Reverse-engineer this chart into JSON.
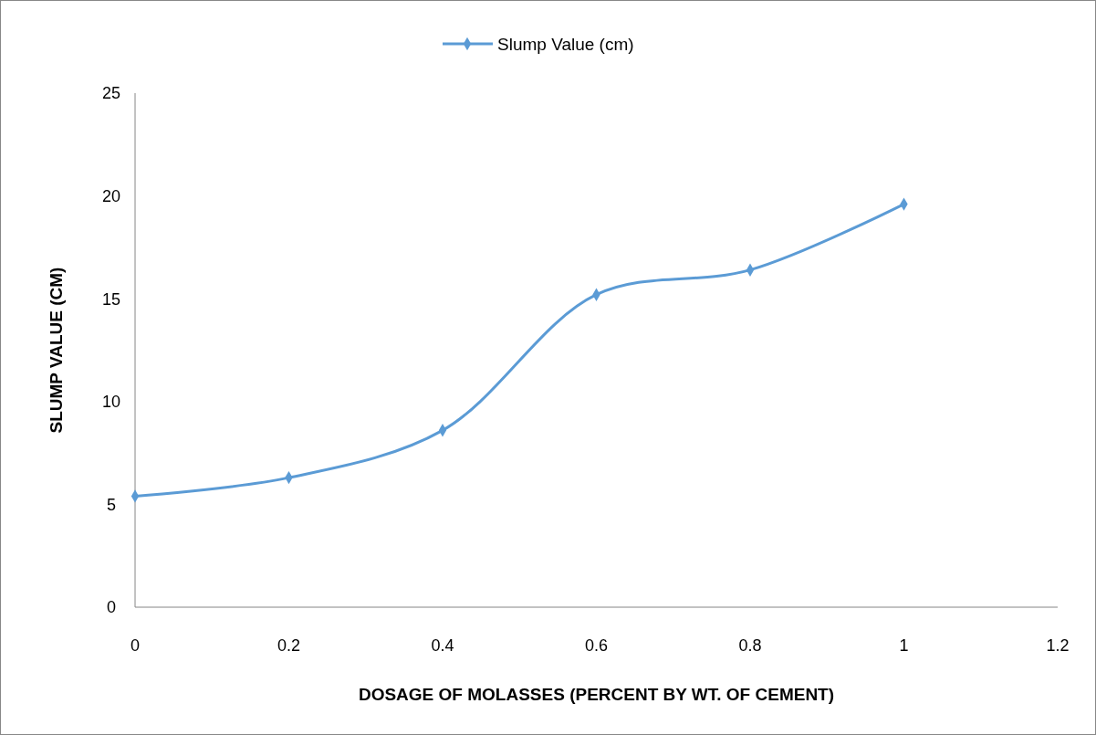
{
  "chart_data": {
    "type": "line",
    "xlabel": "DOSAGE OF MOLASSES (PERCENT BY WT. OF CEMENT)",
    "ylabel": "SLUMP VALUE (CM)",
    "x": [
      0,
      0.2,
      0.4,
      0.6,
      0.8,
      1
    ],
    "series": [
      {
        "name": "Slump Value (cm)",
        "color": "#5b9bd5",
        "values": [
          5.4,
          6.3,
          8.6,
          15.2,
          16.4,
          19.6
        ]
      }
    ],
    "xlim": [
      0,
      1.2
    ],
    "xticks": [
      0,
      0.2,
      0.4,
      0.6,
      0.8,
      1,
      1.2
    ],
    "ylim": [
      0,
      25
    ],
    "yticks": [
      0,
      5,
      10,
      15,
      20,
      25
    ],
    "legend": "top",
    "marker": "diamond",
    "grid": false
  }
}
